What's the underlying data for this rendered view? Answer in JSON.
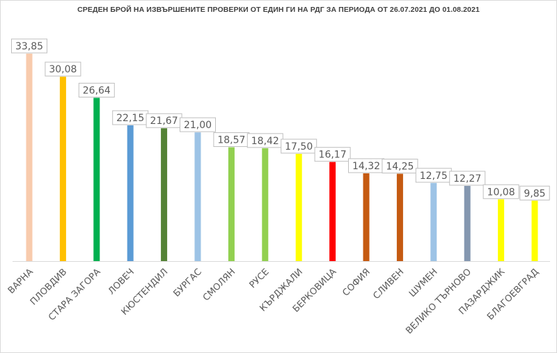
{
  "chart_data": {
    "type": "bar",
    "title": "СРЕДЕН БРОЙ НА ИЗВЪРШЕНИТЕ ПРОВЕРКИ ОТ ЕДИН ГИ НА РДГ ЗА ПЕРИОДА ОТ 26.07.2021 ДО 01.08.2021",
    "categories": [
      "ВАРНА",
      "ПЛОВДИВ",
      "СТАРА ЗАГОРА",
      "ЛОВЕЧ",
      "КЮСТЕНДИЛ",
      "БУРГАС",
      "СМОЛЯН",
      "РУСЕ",
      "КЪРДЖАЛИ",
      "БЕРКОВИЦА",
      "СОФИЯ",
      "СЛИВЕН",
      "ШУМЕН",
      "ВЕЛИКО ТЪРНОВО",
      "ПАЗАРДЖИК",
      "БЛАГОЕВГРАД"
    ],
    "values": [
      33.85,
      30.08,
      26.64,
      22.15,
      21.67,
      21.0,
      18.57,
      18.42,
      17.5,
      16.17,
      14.32,
      14.25,
      12.75,
      12.27,
      10.08,
      9.85
    ],
    "data_labels": [
      "33,85",
      "30,08",
      "26,64",
      "22,15",
      "21,67",
      "21,00",
      "18,57",
      "18,42",
      "17,50",
      "16,17",
      "14,32",
      "14,25",
      "12,75",
      "12,27",
      "10,08",
      "9,85"
    ],
    "colors": [
      "#f8cbad",
      "#ffc000",
      "#00b050",
      "#5b9bd5",
      "#548235",
      "#9dc3e6",
      "#92d050",
      "#92d050",
      "#ffff00",
      "#ff0000",
      "#c55a11",
      "#c55a11",
      "#9dc3e6",
      "#8497b0",
      "#ffff00",
      "#ffff00"
    ],
    "ylim": [
      0,
      34
    ],
    "grid": false,
    "legend": "none"
  }
}
